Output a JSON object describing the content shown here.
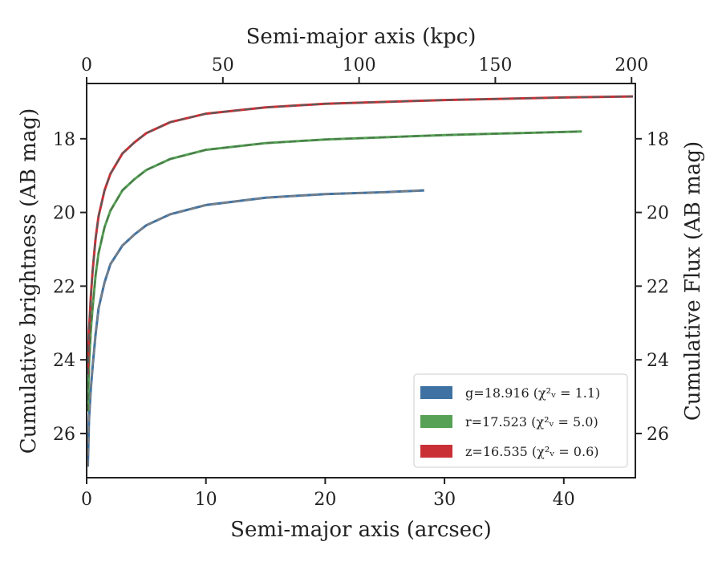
{
  "chart_data": {
    "type": "line",
    "xlabel": "Semi-major axis (arcsec)",
    "ylabel": "Cumulative brightness (AB mag)",
    "top_xlabel": "Semi-major axis (kpc)",
    "right_ylabel": "Cumulative Flux (AB mag)",
    "xlim": [
      0,
      46
    ],
    "top_xlim": [
      0,
      201.4
    ],
    "ylim": [
      27.2,
      16.5
    ],
    "y_inverted": true,
    "x_ticks": [
      "0",
      "10",
      "20",
      "30",
      "40"
    ],
    "top_x_ticks": [
      "0",
      "50",
      "100",
      "150",
      "200"
    ],
    "y_ticks": [
      "18",
      "20",
      "22",
      "24",
      "26"
    ],
    "legend_position": "lower-right",
    "series": [
      {
        "name": "g",
        "legend_label": "g=18.916 (χ²ᵥ = 1.1)",
        "color": "#3f72a3",
        "fit_color": "#7f7f7f",
        "x": [
          0.1,
          0.2,
          0.35,
          0.5,
          0.75,
          1.0,
          1.5,
          2.0,
          3.0,
          4.0,
          5.0,
          7.0,
          10.0,
          15.0,
          20.0,
          25.0,
          28.3
        ],
        "y": [
          26.9,
          25.6,
          24.8,
          24.2,
          23.3,
          22.6,
          21.9,
          21.4,
          20.9,
          20.6,
          20.35,
          20.05,
          19.8,
          19.6,
          19.5,
          19.45,
          19.4
        ]
      },
      {
        "name": "r",
        "legend_label": "r=17.523 (χ²ᵥ = 5.0)",
        "color": "#56a155",
        "fit_color": "#4a7a4a",
        "x": [
          0.1,
          0.2,
          0.35,
          0.5,
          0.75,
          1.0,
          1.5,
          2.0,
          3.0,
          4.0,
          5.0,
          7.0,
          10.0,
          15.0,
          20.0,
          30.0,
          41.5
        ],
        "y": [
          25.4,
          24.1,
          23.2,
          22.6,
          21.7,
          21.1,
          20.4,
          19.95,
          19.4,
          19.1,
          18.85,
          18.55,
          18.3,
          18.12,
          18.02,
          17.9,
          17.8
        ]
      },
      {
        "name": "z",
        "legend_label": "z=16.535 (χ²ᵥ = 0.6)",
        "color": "#c93035",
        "fit_color": "#5a5a5a",
        "x": [
          0.1,
          0.2,
          0.35,
          0.5,
          0.75,
          1.0,
          1.5,
          2.0,
          3.0,
          4.0,
          5.0,
          7.0,
          10.0,
          15.0,
          20.0,
          30.0,
          40.0,
          45.8
        ],
        "y": [
          24.4,
          23.2,
          22.3,
          21.6,
          20.7,
          20.1,
          19.4,
          18.95,
          18.4,
          18.1,
          17.85,
          17.55,
          17.32,
          17.15,
          17.05,
          16.95,
          16.88,
          16.85
        ]
      }
    ]
  }
}
